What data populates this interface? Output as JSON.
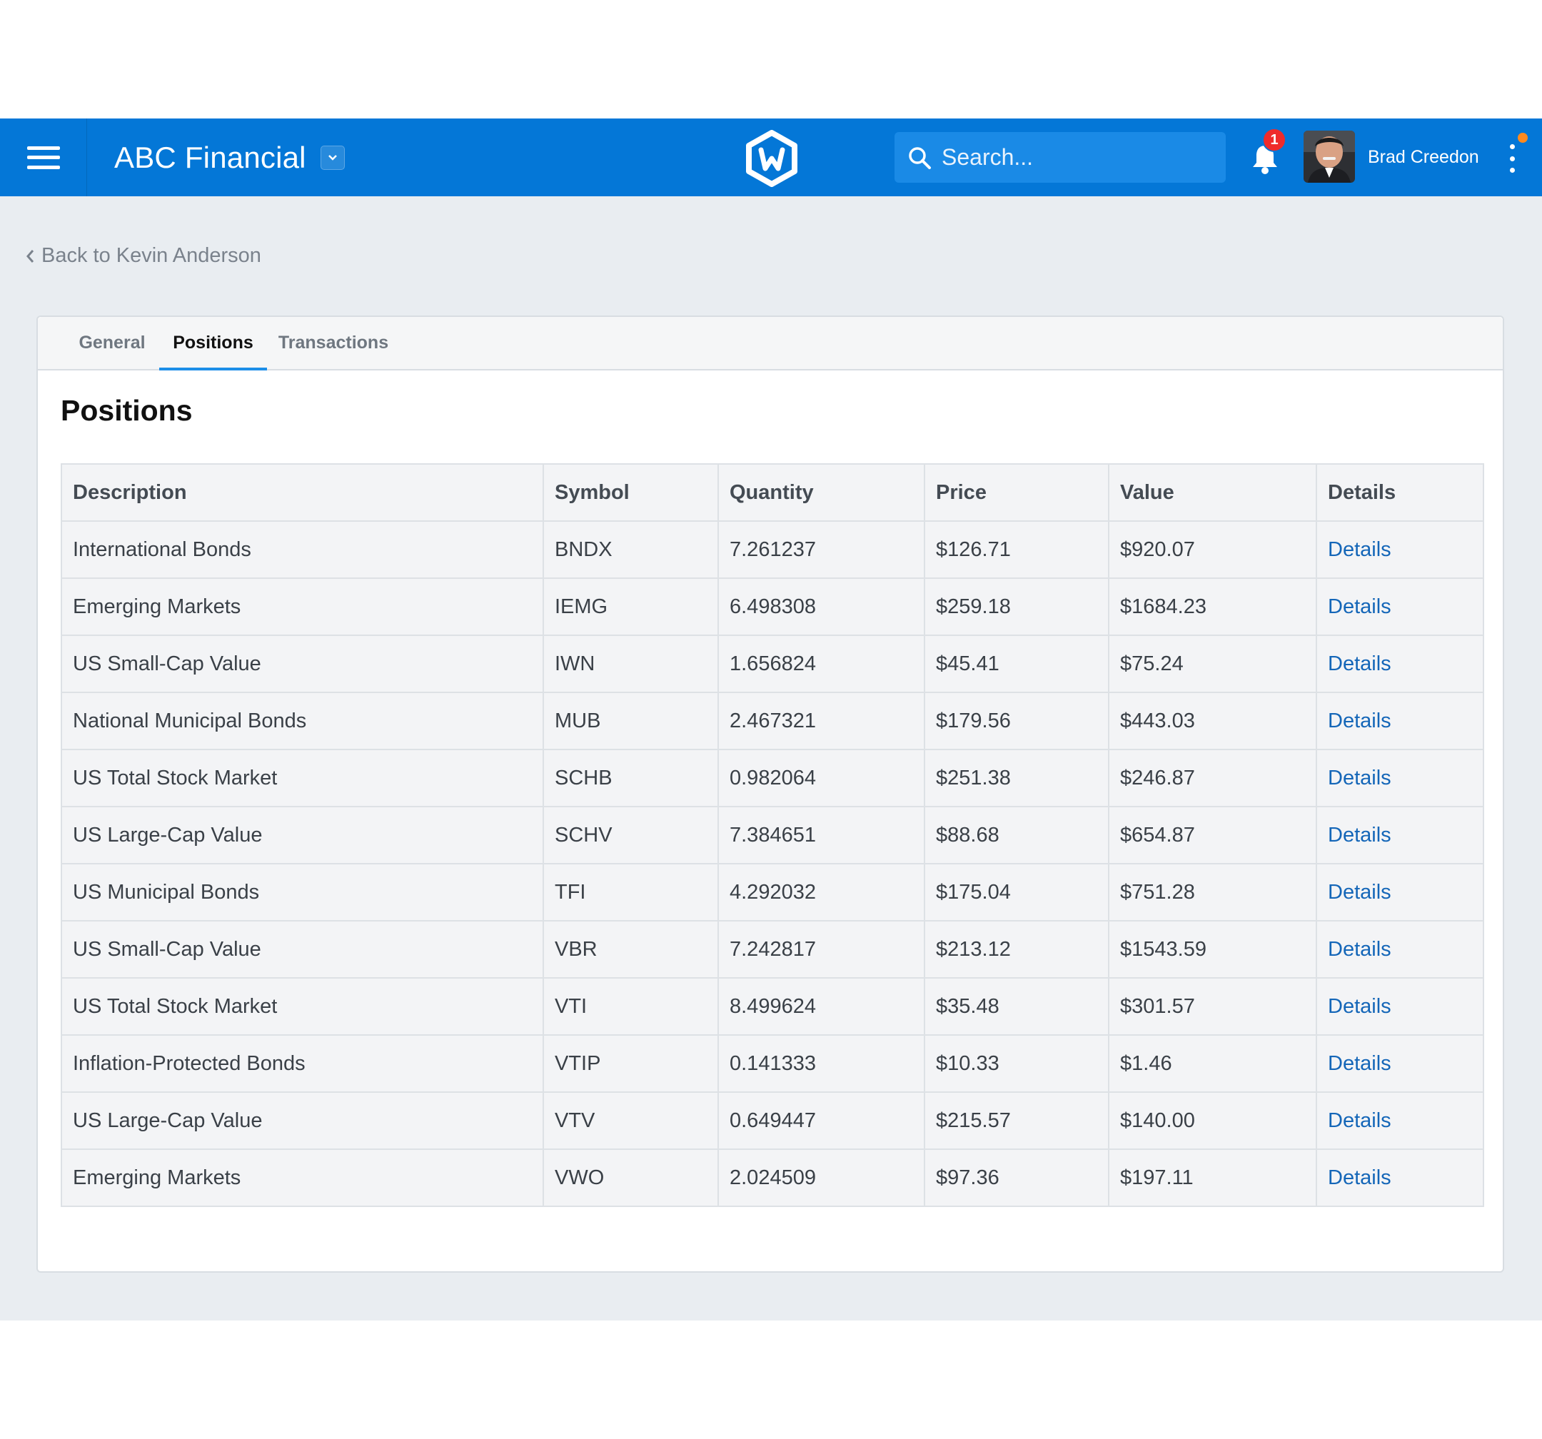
{
  "header": {
    "app_title": "ABC Financial",
    "search_placeholder": "Search...",
    "notification_count": "1",
    "user_name": "Brad Creedon"
  },
  "back_link": "Back to Kevin Anderson",
  "tabs": [
    {
      "label": "General",
      "active": false
    },
    {
      "label": "Positions",
      "active": true
    },
    {
      "label": "Transactions",
      "active": false
    }
  ],
  "section_title": "Positions",
  "table": {
    "columns": [
      "Description",
      "Symbol",
      "Quantity",
      "Price",
      "Value",
      "Details"
    ],
    "rows": [
      {
        "description": "International Bonds",
        "symbol": "BNDX",
        "quantity": "7.261237",
        "price": "$126.71",
        "value": "$920.07",
        "details": "Details"
      },
      {
        "description": "Emerging Markets",
        "symbol": "IEMG",
        "quantity": "6.498308",
        "price": "$259.18",
        "value": "$1684.23",
        "details": "Details"
      },
      {
        "description": "US Small-Cap Value",
        "symbol": "IWN",
        "quantity": "1.656824",
        "price": "$45.41",
        "value": "$75.24",
        "details": "Details"
      },
      {
        "description": "National Municipal Bonds",
        "symbol": "MUB",
        "quantity": "2.467321",
        "price": "$179.56",
        "value": "$443.03",
        "details": "Details"
      },
      {
        "description": "US Total Stock Market",
        "symbol": "SCHB",
        "quantity": "0.982064",
        "price": "$251.38",
        "value": "$246.87",
        "details": "Details"
      },
      {
        "description": "US Large-Cap Value",
        "symbol": "SCHV",
        "quantity": "7.384651",
        "price": "$88.68",
        "value": "$654.87",
        "details": "Details"
      },
      {
        "description": "US Municipal Bonds",
        "symbol": "TFI",
        "quantity": "4.292032",
        "price": "$175.04",
        "value": "$751.28",
        "details": "Details"
      },
      {
        "description": "US Small-Cap Value",
        "symbol": "VBR",
        "quantity": "7.242817",
        "price": "$213.12",
        "value": "$1543.59",
        "details": "Details"
      },
      {
        "description": "US Total Stock Market",
        "symbol": "VTI",
        "quantity": "8.499624",
        "price": "$35.48",
        "value": "$301.57",
        "details": "Details"
      },
      {
        "description": "Inflation-Protected Bonds",
        "symbol": "VTIP",
        "quantity": "0.141333",
        "price": "$10.33",
        "value": "$1.46",
        "details": "Details"
      },
      {
        "description": "US Large-Cap Value",
        "symbol": "VTV",
        "quantity": "0.649447",
        "price": "$215.57",
        "value": "$140.00",
        "details": "Details"
      },
      {
        "description": "Emerging Markets",
        "symbol": "VWO",
        "quantity": "2.024509",
        "price": "$97.36",
        "value": "$197.11",
        "details": "Details"
      }
    ]
  },
  "icons": {
    "menu": "hamburger-menu-icon",
    "dropdown": "chevron-down-icon",
    "logo": "hexagon-w-logo",
    "search": "search-icon",
    "notifications": "bell-icon",
    "more": "kebab-menu-icon",
    "back": "chevron-left-icon"
  },
  "colors": {
    "topbar": "#0477d7",
    "page_bg": "#e9edf1",
    "link": "#1466b8",
    "tab_active_underline": "#1c8ee8",
    "badge": "#ef2b2b",
    "status_dot": "#ff8a1f"
  }
}
